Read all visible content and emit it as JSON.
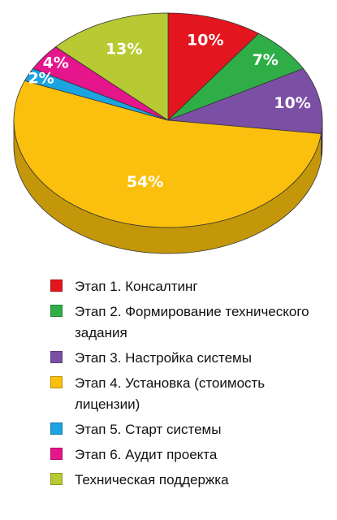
{
  "chart_data": {
    "type": "pie",
    "title": "",
    "legend_position": "bottom",
    "slices": [
      {
        "label": "Этап 1. Консалтинг",
        "value": 10,
        "display": "10%",
        "color": "#e3161f"
      },
      {
        "label": "Этап 2. Формирование технического задания",
        "value": 7,
        "display": "7%",
        "color": "#2fae48"
      },
      {
        "label": "Этап 3. Настройка системы",
        "value": 10,
        "display": "10%",
        "color": "#7b4fa3"
      },
      {
        "label": "Этап 4. Установка (стоимость лицензии)",
        "value": 54,
        "display": "54%",
        "color": "#fbc00d"
      },
      {
        "label": "Этап 5. Старт системы",
        "value": 2,
        "display": "2%",
        "color": "#1ba4df"
      },
      {
        "label": "Этап 6. Аудит проекта",
        "value": 4,
        "display": "4%",
        "color": "#e5158c"
      },
      {
        "label": "Техническая поддержка",
        "value": 13,
        "display": "13%",
        "color": "#b8ca33"
      }
    ]
  }
}
